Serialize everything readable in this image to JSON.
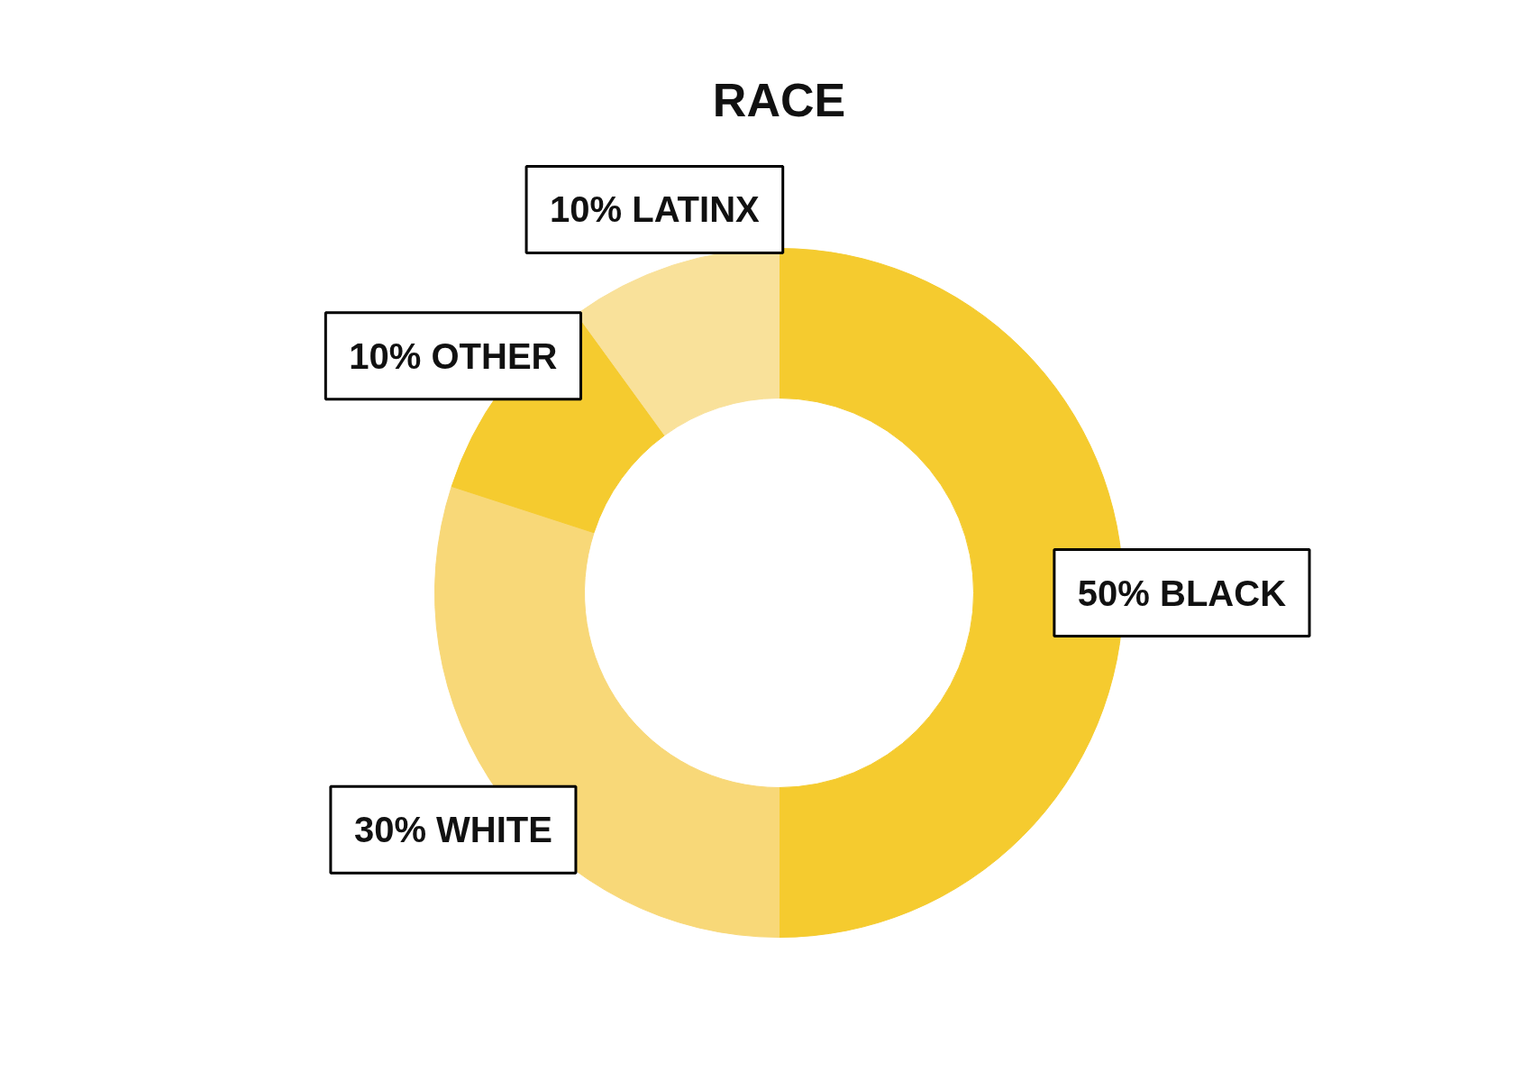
{
  "chart_data": {
    "type": "donut",
    "title": "RACE",
    "categories": [
      "50% BLACK",
      "30% WHITE",
      "10% OTHER",
      "10% LATINX"
    ],
    "values": [
      50,
      30,
      10,
      10
    ],
    "colors": [
      "#f5cb2f",
      "#f8d878",
      "#f5cb2f",
      "#f9e19a"
    ],
    "legend": false
  }
}
